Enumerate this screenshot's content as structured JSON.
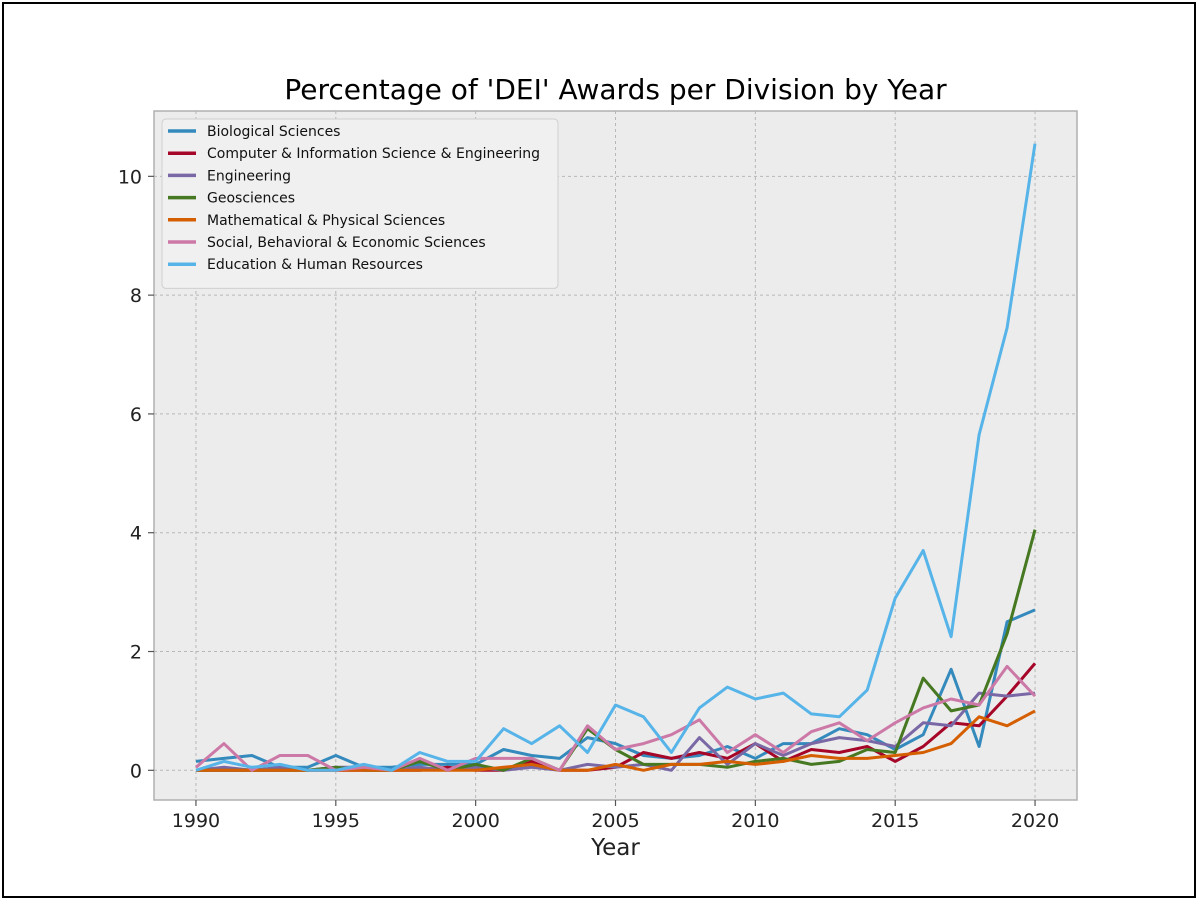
{
  "chart_data": {
    "type": "line",
    "title": "Percentage of 'DEI' Awards per Division by Year",
    "xlabel": "Year",
    "ylabel": "",
    "xlim": [
      1988.5,
      2021.5
    ],
    "ylim": [
      -0.5,
      11.1
    ],
    "x_ticks": [
      "1990",
      "1995",
      "2000",
      "2005",
      "2010",
      "2015",
      "2020"
    ],
    "y_ticks": [
      "0",
      "2",
      "4",
      "6",
      "8",
      "10"
    ],
    "grid": true,
    "legend_position": "top-left",
    "x": [
      1990,
      1991,
      1992,
      1993,
      1994,
      1995,
      1996,
      1997,
      1998,
      1999,
      2000,
      2001,
      2002,
      2003,
      2004,
      2005,
      2006,
      2007,
      2008,
      2009,
      2010,
      2011,
      2012,
      2013,
      2014,
      2015,
      2016,
      2017,
      2018,
      2019,
      2020
    ],
    "series": [
      {
        "name": "Biological Sciences",
        "color": "#348abd",
        "values": [
          0.15,
          0.2,
          0.25,
          0.05,
          0.05,
          0.25,
          0.05,
          0.05,
          0.1,
          0.1,
          0.1,
          0.35,
          0.25,
          0.2,
          0.55,
          0.45,
          0.25,
          0.2,
          0.25,
          0.4,
          0.2,
          0.45,
          0.45,
          0.7,
          0.6,
          0.35,
          0.6,
          1.7,
          0.4,
          2.5,
          2.7
        ]
      },
      {
        "name": "Computer & Information Science & Engineering",
        "color": "#a60628",
        "values": [
          0.0,
          0.0,
          0.0,
          0.0,
          0.0,
          0.0,
          0.0,
          0.0,
          0.0,
          0.05,
          0.0,
          0.0,
          0.15,
          0.0,
          0.0,
          0.05,
          0.3,
          0.2,
          0.3,
          0.2,
          0.45,
          0.15,
          0.35,
          0.3,
          0.4,
          0.15,
          0.4,
          0.8,
          0.75,
          1.25,
          1.8
        ]
      },
      {
        "name": "Engineering",
        "color": "#7a68a6",
        "values": [
          0.0,
          0.05,
          0.0,
          0.05,
          0.0,
          0.05,
          0.05,
          0.0,
          0.05,
          0.0,
          0.05,
          0.0,
          0.05,
          0.0,
          0.1,
          0.05,
          0.1,
          0.0,
          0.55,
          0.1,
          0.45,
          0.25,
          0.45,
          0.55,
          0.5,
          0.4,
          0.8,
          0.75,
          1.3,
          1.25,
          1.3
        ]
      },
      {
        "name": "Geosciences",
        "color": "#467821",
        "values": [
          0.0,
          0.0,
          0.0,
          0.0,
          0.0,
          0.05,
          0.0,
          0.0,
          0.15,
          0.0,
          0.1,
          0.0,
          0.2,
          0.0,
          0.7,
          0.35,
          0.1,
          0.1,
          0.1,
          0.05,
          0.15,
          0.2,
          0.1,
          0.15,
          0.35,
          0.3,
          1.55,
          1.0,
          1.1,
          2.3,
          4.05
        ]
      },
      {
        "name": "Mathematical & Physical Sciences",
        "color": "#d55e00",
        "values": [
          0.0,
          0.0,
          0.0,
          0.0,
          0.0,
          0.0,
          0.0,
          0.0,
          0.0,
          0.0,
          0.0,
          0.05,
          0.1,
          0.0,
          0.0,
          0.1,
          0.0,
          0.1,
          0.1,
          0.15,
          0.1,
          0.15,
          0.25,
          0.2,
          0.2,
          0.25,
          0.3,
          0.45,
          0.9,
          0.75,
          1.0
        ]
      },
      {
        "name": "Social, Behavioral & Economic Sciences",
        "color": "#cc79a7",
        "values": [
          0.05,
          0.45,
          0.0,
          0.25,
          0.25,
          0.0,
          0.05,
          0.0,
          0.2,
          0.0,
          0.2,
          0.2,
          0.2,
          0.0,
          0.75,
          0.35,
          0.45,
          0.6,
          0.85,
          0.3,
          0.6,
          0.3,
          0.65,
          0.8,
          0.5,
          0.8,
          1.05,
          1.2,
          1.1,
          1.75,
          1.25
        ]
      },
      {
        "name": "Education & Human Resources",
        "color": "#56b4e9",
        "values": [
          0.0,
          0.15,
          0.05,
          0.1,
          0.0,
          0.0,
          0.1,
          0.0,
          0.3,
          0.15,
          0.15,
          0.7,
          0.45,
          0.75,
          0.3,
          1.1,
          0.9,
          0.3,
          1.05,
          1.4,
          1.2,
          1.3,
          0.95,
          0.9,
          1.35,
          2.9,
          3.7,
          2.25,
          5.65,
          7.45,
          10.55
        ]
      }
    ]
  }
}
